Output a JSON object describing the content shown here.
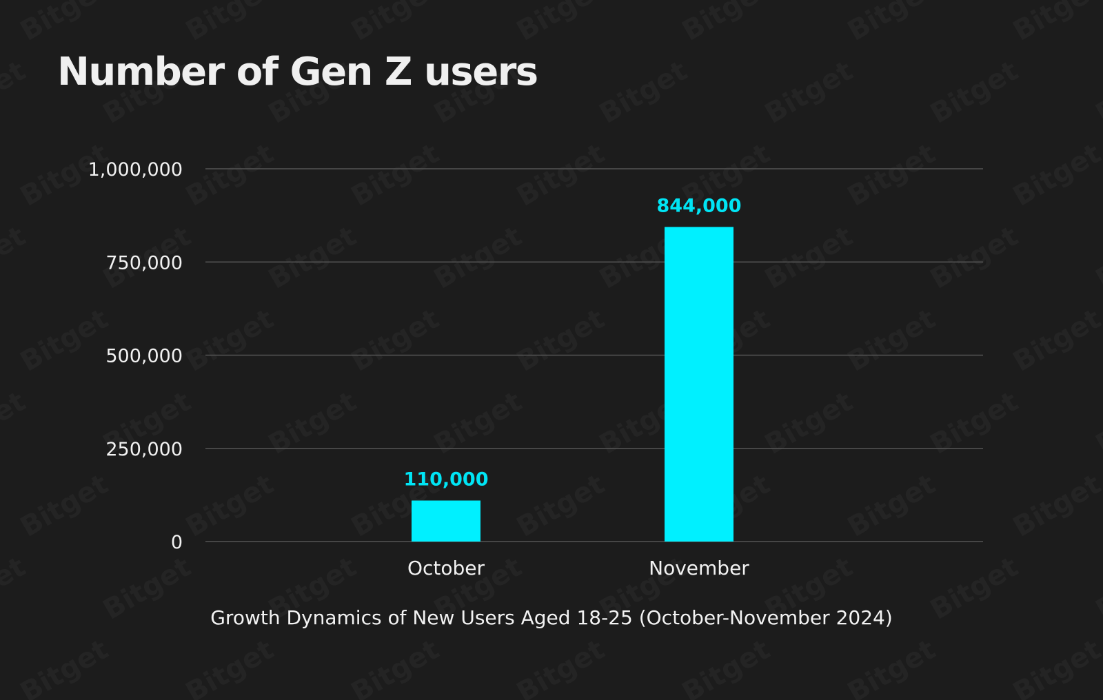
{
  "watermark": "Bitget",
  "chart_data": {
    "type": "bar",
    "title": "Number of Gen Z users",
    "subtitle": "Growth Dynamics of New Users Aged 18-25 (October-November 2024)",
    "categories": [
      "October",
      "November"
    ],
    "values": [
      110000,
      844000
    ],
    "data_labels": [
      "110,000",
      "844,000"
    ],
    "ylim": [
      0,
      1000000
    ],
    "yticks": [
      0,
      250000,
      500000,
      750000,
      1000000
    ],
    "ytick_labels": [
      "0",
      "250,000",
      "500,000",
      "750,000",
      "1,000,000"
    ],
    "grid": true,
    "bar_color": "#00f0ff",
    "label_color": "#00e5f5",
    "background": "#1c1c1c"
  }
}
